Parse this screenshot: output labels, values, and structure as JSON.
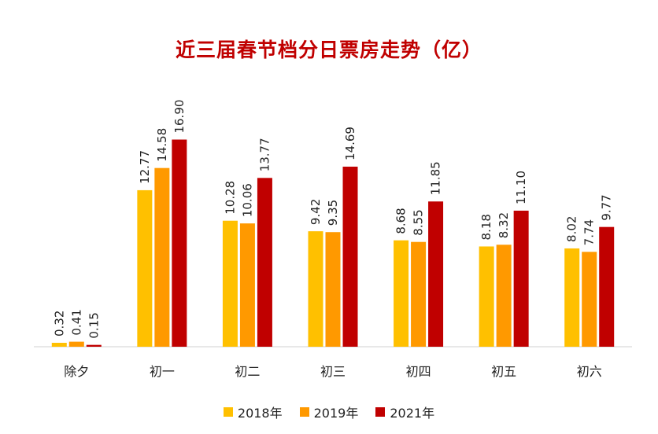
{
  "chart_data": {
    "type": "bar",
    "title": "近三届春节档分日票房走势（亿）",
    "xlabel": "",
    "ylabel": "",
    "ylim": [
      0,
      22
    ],
    "grid": false,
    "legend": "bottom",
    "categories": [
      "除夕",
      "初一",
      "初二",
      "初三",
      "初四",
      "初五",
      "初六"
    ],
    "series": [
      {
        "name": "2018年",
        "color": "#ffc000",
        "values": [
          0.32,
          12.77,
          10.28,
          9.42,
          8.68,
          8.18,
          8.02
        ]
      },
      {
        "name": "2019年",
        "color": "#ff9900",
        "values": [
          0.41,
          14.58,
          10.06,
          9.35,
          8.55,
          8.32,
          7.74
        ]
      },
      {
        "name": "2021年",
        "color": "#c00000",
        "values": [
          0.15,
          16.9,
          13.77,
          14.69,
          11.85,
          11.1,
          9.77
        ]
      }
    ]
  }
}
